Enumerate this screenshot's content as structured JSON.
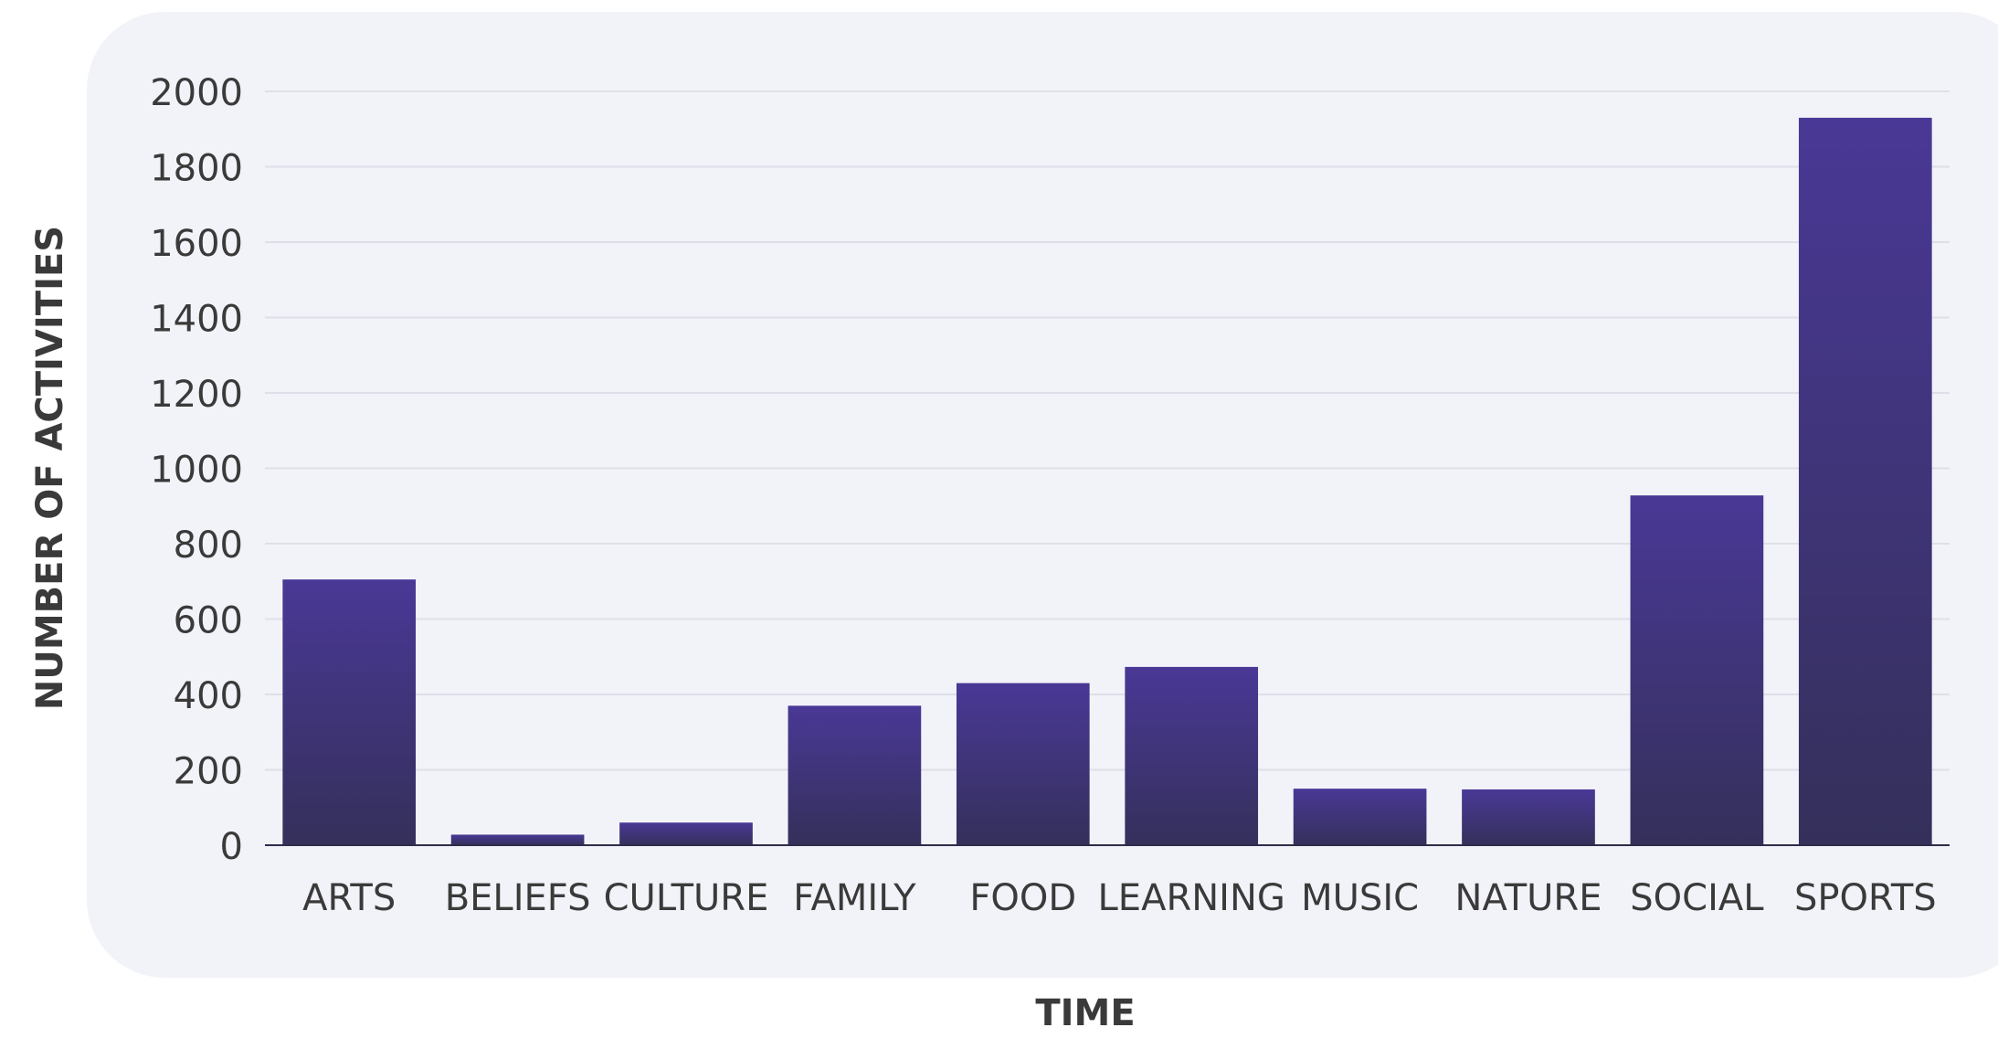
{
  "chart_data": {
    "type": "bar",
    "categories": [
      "ARTS",
      "BELIEFS",
      "CULTURE",
      "FAMILY",
      "FOOD",
      "LEARNING",
      "MUSIC",
      "NATURE",
      "SOCIAL",
      "SPORTS"
    ],
    "values": [
      705,
      28,
      60,
      370,
      430,
      473,
      150,
      148,
      928,
      1930
    ],
    "xlabel": "TIME",
    "ylabel": "NUMBER OF ACTIVITIES",
    "ylim": [
      0,
      2000
    ],
    "yticks": [
      0,
      200,
      400,
      600,
      800,
      1000,
      1200,
      1400,
      1600,
      1800,
      2000
    ],
    "grid": true,
    "legend": "none",
    "colors": {
      "bar_top": "#4a3896",
      "bar_bottom": "#34305a",
      "panel": "#f2f3f9",
      "gridline": "#dedfe8",
      "axis_text": "#3a3a3a"
    }
  }
}
